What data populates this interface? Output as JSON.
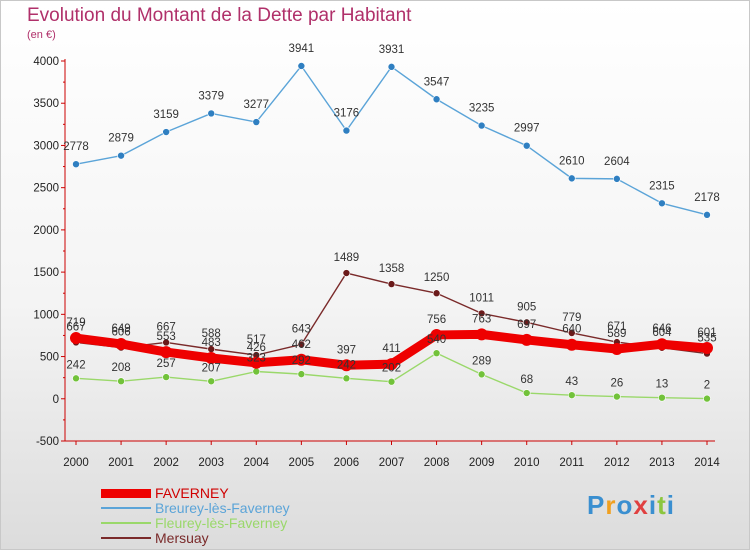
{
  "title": "Evolution du Montant de la Dette par Habitant",
  "subtitle": "(en €)",
  "logo": {
    "text": "Proxiti",
    "colors": [
      "#3a8fd0",
      "#f0a020",
      "#3a8fd0",
      "#e04040",
      "#3a8fd0",
      "#8cc63f",
      "#3a8fd0"
    ]
  },
  "chart_data": {
    "type": "line",
    "x": [
      "2000",
      "2001",
      "2002",
      "2003",
      "2004",
      "2005",
      "2006",
      "2007",
      "2008",
      "2009",
      "2010",
      "2011",
      "2012",
      "2013",
      "2014"
    ],
    "ylim": [
      -500,
      4000
    ],
    "yticks": [
      "-500",
      "0",
      "500",
      "1000",
      "1500",
      "2000",
      "2500",
      "3000",
      "3500",
      "4000"
    ],
    "grid": false,
    "legend_position": "bottom-left",
    "series": [
      {
        "name": "FAVERNEY",
        "color": "#ee0000",
        "marker_color": "#ee0000",
        "values": [
          719,
          649,
          553,
          483,
          426,
          462,
          397,
          411,
          756,
          763,
          697,
          640,
          589,
          646,
          601
        ]
      },
      {
        "name": "Breurey-lès-Faverney",
        "color": "#5ba4d8",
        "marker_color": "#2f7fc1",
        "values": [
          2778,
          2879,
          3159,
          3379,
          3277,
          3941,
          3176,
          3931,
          3547,
          3235,
          2997,
          2610,
          2604,
          2315,
          2178
        ]
      },
      {
        "name": "Fleurey-lès-Faverney",
        "color": "#9ad86a",
        "marker_color": "#72c23a",
        "values": [
          242,
          208,
          257,
          207,
          323,
          292,
          242,
          202,
          540,
          289,
          68,
          43,
          26,
          13,
          2
        ]
      },
      {
        "name": "Mersuay",
        "color": "#7a2a2a",
        "marker_color": "#6b1a1a",
        "values": [
          667,
          606,
          667,
          588,
          517,
          643,
          1489,
          1358,
          1250,
          1011,
          905,
          779,
          671,
          604,
          535
        ]
      }
    ]
  }
}
